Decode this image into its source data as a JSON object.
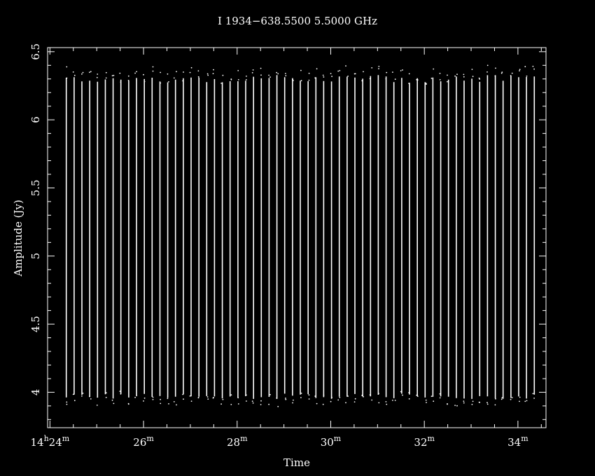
{
  "chart_data": {
    "type": "line",
    "title": "I 1934−638.5500 5.5000 GHz",
    "xlabel": "Time",
    "ylabel": "Amplitude (Jy)",
    "x_range_minutes": [
      24.35,
      34.35
    ],
    "xlim_minutes": [
      23.95,
      34.6
    ],
    "ylim": [
      3.74,
      6.53
    ],
    "x_ticks": [
      {
        "minutes": 24,
        "hour": "14",
        "minute": "24"
      },
      {
        "minutes": 26,
        "minute": "26"
      },
      {
        "minutes": 28,
        "minute": "28"
      },
      {
        "minutes": 30,
        "minute": "30"
      },
      {
        "minutes": 32,
        "minute": "32"
      },
      {
        "minutes": 34,
        "minute": "34"
      }
    ],
    "y_ticks": [
      "4",
      "4.5",
      "5",
      "5.5",
      "6",
      "6.5"
    ],
    "y_tick_values": [
      4,
      4.5,
      5,
      5.5,
      6,
      6.5
    ],
    "n_cycles": 61,
    "high_level": 6.3,
    "low_level": 3.97,
    "series_color": "#ffffff",
    "background": "#000000",
    "grid": false,
    "legend": "none"
  }
}
